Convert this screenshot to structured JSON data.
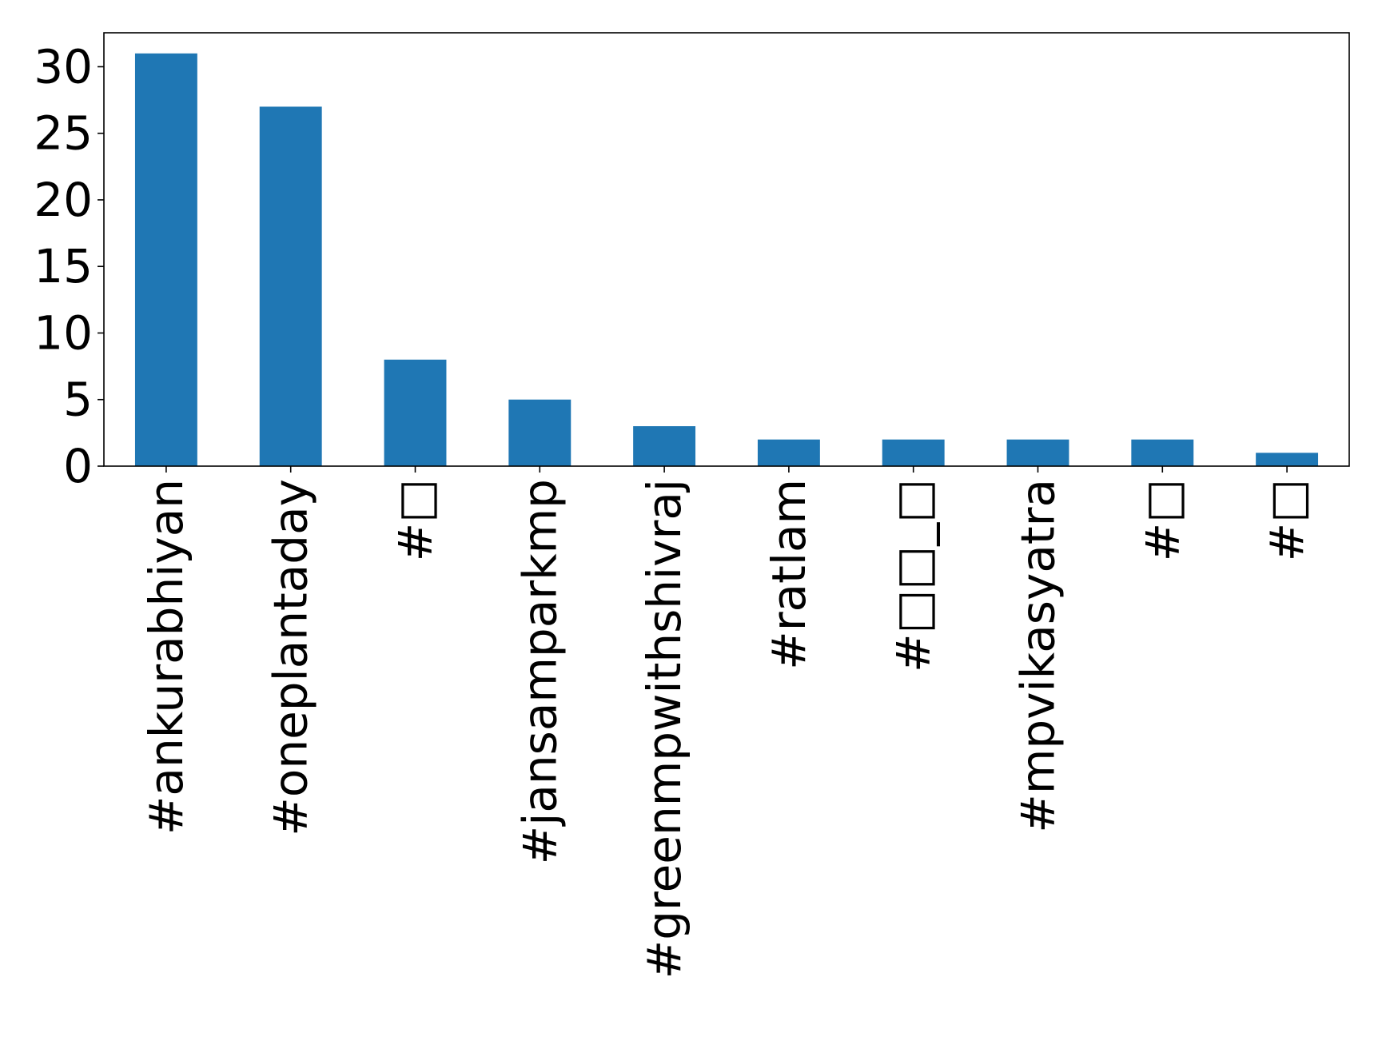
{
  "chart_data": {
    "type": "bar",
    "categories": [
      "#ankurabhiyan",
      "#oneplantaday",
      "#□",
      "#jansamparkmp",
      "#greenmpwithshivraj",
      "#ratlam",
      "#□□_□",
      "#mpvikasyatra",
      "#□",
      "#□"
    ],
    "values": [
      31,
      27,
      8,
      5,
      3,
      2,
      2,
      2,
      2,
      1
    ],
    "yticks": [
      "0",
      "5",
      "10",
      "15",
      "20",
      "25",
      "30"
    ],
    "ylim": [
      0,
      32.55
    ],
    "bar_color": "#1f77b4",
    "grid": false,
    "legend": false
  }
}
